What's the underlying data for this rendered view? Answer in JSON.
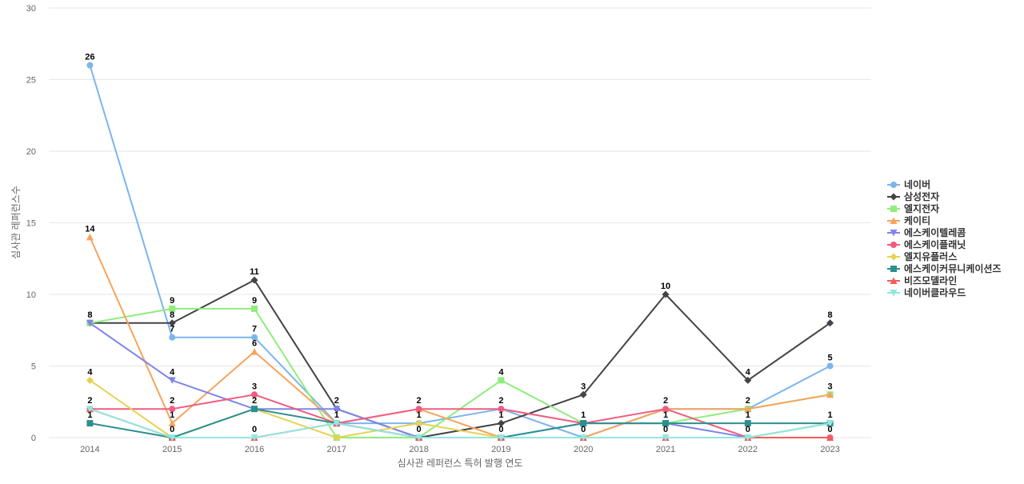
{
  "chart_data": {
    "type": "line",
    "title": "",
    "xlabel": "심사관 레퍼런스 특허 발행 연도",
    "ylabel": "심사관 레퍼런스수",
    "x": [
      "2014",
      "2015",
      "2016",
      "2017",
      "2018",
      "2019",
      "2020",
      "2021",
      "2022",
      "2023"
    ],
    "ylim": [
      0,
      30
    ],
    "yticks": [
      0,
      5,
      10,
      15,
      20,
      25,
      30
    ],
    "grid": true,
    "legend_position": "right",
    "series": [
      {
        "name": "네이버",
        "color": "#7cb5ec",
        "marker": "circle",
        "values": [
          26,
          7,
          7,
          1,
          1,
          2,
          0,
          2,
          2,
          5
        ],
        "labels": [
          26,
          7,
          7,
          null,
          null,
          null,
          null,
          null,
          null,
          5
        ]
      },
      {
        "name": "삼성전자",
        "color": "#434348",
        "marker": "diamond",
        "values": [
          8,
          8,
          11,
          2,
          0,
          1,
          3,
          10,
          4,
          8
        ],
        "labels": [
          8,
          8,
          11,
          2,
          null,
          1,
          3,
          10,
          4,
          8
        ]
      },
      {
        "name": "엘지전자",
        "color": "#90ed7d",
        "marker": "square",
        "values": [
          8,
          9,
          9,
          0,
          0,
          4,
          1,
          1,
          2,
          3
        ],
        "labels": [
          null,
          9,
          9,
          null,
          null,
          4,
          null,
          null,
          null,
          null
        ]
      },
      {
        "name": "케이티",
        "color": "#f7a35c",
        "marker": "triangle",
        "values": [
          14,
          1,
          6,
          1,
          2,
          0,
          0,
          2,
          2,
          3
        ],
        "labels": [
          14,
          1,
          6,
          null,
          2,
          null,
          null,
          null,
          2,
          3
        ]
      },
      {
        "name": "에스케이텔레콤",
        "color": "#8085e9",
        "marker": "triangle-down",
        "values": [
          8,
          4,
          2,
          2,
          0,
          0,
          1,
          1,
          0,
          1
        ],
        "labels": [
          null,
          4,
          null,
          null,
          null,
          null,
          null,
          null,
          null,
          null
        ]
      },
      {
        "name": "에스케이플래닛",
        "color": "#f15c80",
        "marker": "circle",
        "values": [
          2,
          2,
          3,
          1,
          2,
          2,
          1,
          2,
          0,
          0
        ],
        "labels": [
          null,
          2,
          3,
          null,
          null,
          2,
          null,
          2,
          null,
          null
        ]
      },
      {
        "name": "엘지유플러스",
        "color": "#e4d354",
        "marker": "diamond",
        "values": [
          4,
          0,
          2,
          0,
          1,
          0,
          0,
          0,
          0,
          1
        ],
        "labels": [
          4,
          null,
          null,
          null,
          1,
          null,
          null,
          null,
          null,
          null
        ]
      },
      {
        "name": "에스케이커뮤니케이션즈",
        "color": "#2b908f",
        "marker": "square",
        "values": [
          1,
          0,
          2,
          1,
          0,
          0,
          1,
          1,
          1,
          1
        ],
        "labels": [
          1,
          null,
          2,
          1,
          null,
          null,
          1,
          1,
          1,
          1
        ]
      },
      {
        "name": "비즈모델라인",
        "color": "#f45b5b",
        "marker": "triangle",
        "values": [
          2,
          0,
          0,
          1,
          0,
          0,
          0,
          0,
          0,
          0
        ],
        "labels": [
          null,
          0,
          0,
          null,
          0,
          0,
          0,
          0,
          0,
          0
        ]
      },
      {
        "name": "네이버클라우드",
        "color": "#91e8e1",
        "marker": "triangle-down",
        "values": [
          2,
          0,
          0,
          1,
          0,
          0,
          0,
          0,
          0,
          1
        ],
        "labels": [
          2,
          null,
          null,
          null,
          null,
          null,
          null,
          null,
          null,
          null
        ]
      }
    ]
  }
}
